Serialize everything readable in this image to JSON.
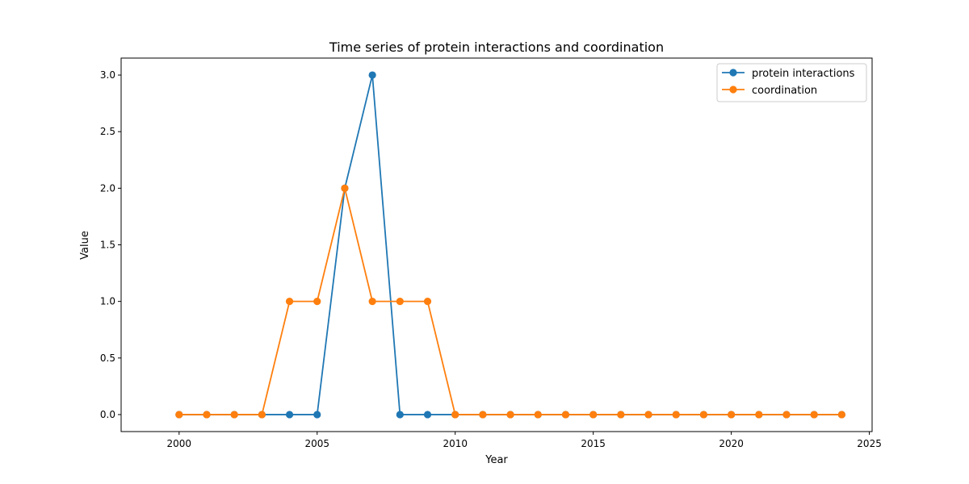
{
  "chart_data": {
    "type": "line",
    "title": "Time series of protein interactions and coordination",
    "xlabel": "Year",
    "ylabel": "Value",
    "xlim": [
      1997.9,
      2025.1
    ],
    "ylim": [
      -0.15,
      3.15
    ],
    "xticks": [
      2000,
      2005,
      2010,
      2015,
      2020,
      2025
    ],
    "yticks": [
      0.0,
      0.5,
      1.0,
      1.5,
      2.0,
      2.5,
      3.0
    ],
    "xtick_labels": [
      "2000",
      "2005",
      "2010",
      "2015",
      "2020",
      "2025"
    ],
    "ytick_labels": [
      "0.0",
      "0.5",
      "1.0",
      "1.5",
      "2.0",
      "2.5",
      "3.0"
    ],
    "grid": false,
    "legend_position": "top-right",
    "x": [
      2000,
      2001,
      2002,
      2003,
      2004,
      2005,
      2006,
      2007,
      2008,
      2009,
      2010,
      2011,
      2012,
      2013,
      2014,
      2015,
      2016,
      2017,
      2018,
      2019,
      2020,
      2021,
      2022,
      2023,
      2024
    ],
    "series": [
      {
        "name": "protein interactions",
        "color": "#1f77b4",
        "values": [
          0,
          0,
          0,
          0,
          0,
          0,
          2,
          3,
          0,
          0,
          0,
          0,
          0,
          0,
          0,
          0,
          0,
          0,
          0,
          0,
          0,
          0,
          0,
          0,
          0
        ]
      },
      {
        "name": "coordination",
        "color": "#ff7f0e",
        "values": [
          0,
          0,
          0,
          0,
          1,
          1,
          2,
          1,
          1,
          1,
          0,
          0,
          0,
          0,
          0,
          0,
          0,
          0,
          0,
          0,
          0,
          0,
          0,
          0,
          0
        ]
      }
    ]
  }
}
